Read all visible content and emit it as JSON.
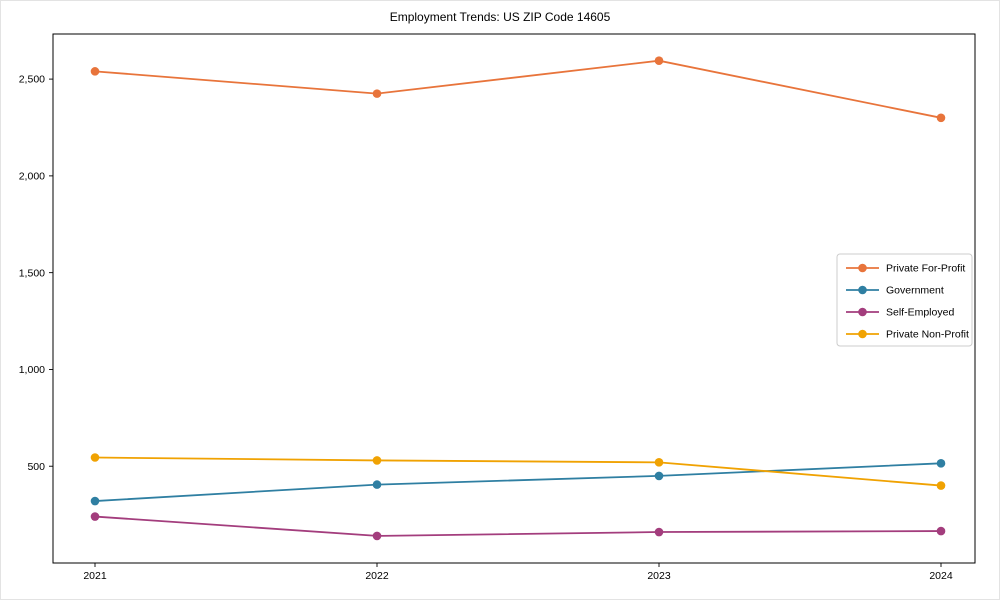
{
  "chart_data": {
    "type": "line",
    "title": "Employment Trends: US ZIP Code 14605",
    "xlabel": "",
    "ylabel": "",
    "x_tick_labels": [
      "2021",
      "2022",
      "2023",
      "2024"
    ],
    "x": [
      2021,
      2022,
      2023,
      2024
    ],
    "series": [
      {
        "name": "Private For-Profit",
        "color": "#e8743b",
        "values": [
          2540,
          2425,
          2595,
          2300
        ]
      },
      {
        "name": "Government",
        "color": "#2f7fa2",
        "values": [
          320,
          405,
          450,
          515
        ]
      },
      {
        "name": "Self-Employed",
        "color": "#a33d7d",
        "values": [
          240,
          140,
          160,
          165
        ]
      },
      {
        "name": "Private Non-Profit",
        "color": "#f0a202",
        "values": [
          545,
          530,
          520,
          400
        ]
      }
    ],
    "ylim": [
      0,
      2733
    ],
    "yticks": [
      500,
      1000,
      1500,
      2000,
      2500
    ],
    "ytick_labels": [
      "500",
      "1,000",
      "1,500",
      "2,000",
      "2,500"
    ],
    "grid": false,
    "marker": "circle",
    "legend_position": "center right",
    "legend_border_color": "#cccccc",
    "axis_color": "#000000",
    "background": "#ffffff"
  }
}
